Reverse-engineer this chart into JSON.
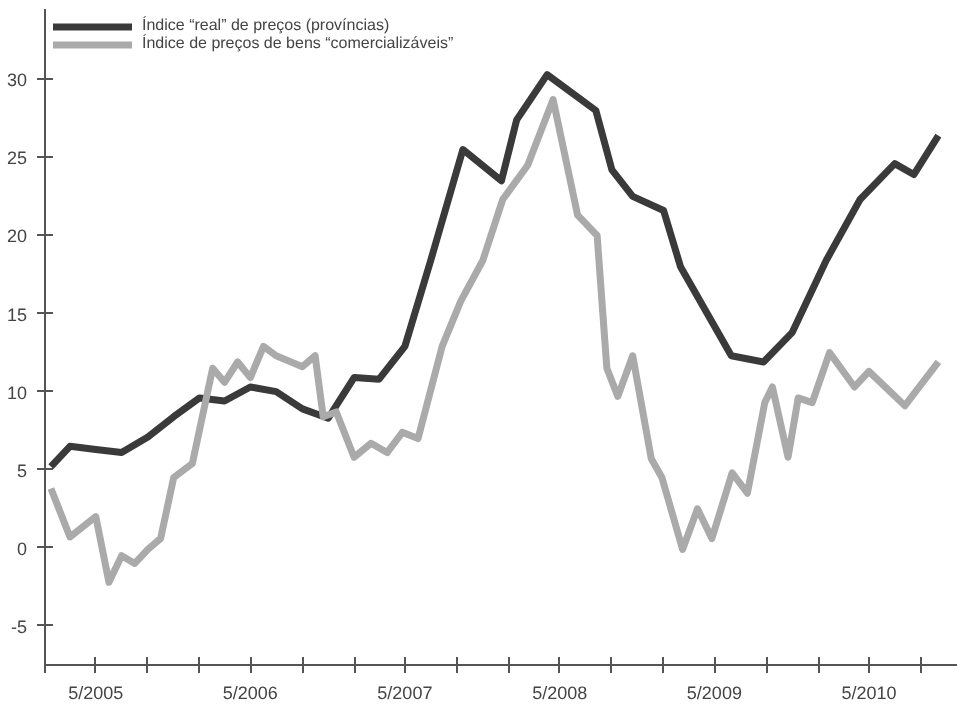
{
  "chart_data": {
    "type": "line",
    "xlim": [
      "2005-01",
      "2010-11-25"
    ],
    "ylim": [
      -7.5,
      34.5
    ],
    "xticks": [
      {
        "value": "2005-01",
        "label": null
      },
      {
        "value": "2005-05",
        "label": "5/2005"
      },
      {
        "value": "2005-09",
        "label": null
      },
      {
        "value": "2006-01",
        "label": null
      },
      {
        "value": "2006-05",
        "label": "5/2006"
      },
      {
        "value": "2006-09",
        "label": null
      },
      {
        "value": "2007-01",
        "label": null
      },
      {
        "value": "2007-05",
        "label": "5/2007"
      },
      {
        "value": "2007-09",
        "label": null
      },
      {
        "value": "2008-01",
        "label": null
      },
      {
        "value": "2008-05",
        "label": "5/2008"
      },
      {
        "value": "2008-09",
        "label": null
      },
      {
        "value": "2009-01",
        "label": null
      },
      {
        "value": "2009-05",
        "label": "5/2009"
      },
      {
        "value": "2009-09",
        "label": null
      },
      {
        "value": "2010-01",
        "label": null
      },
      {
        "value": "2010-05",
        "label": "5/2010"
      },
      {
        "value": "2010-09",
        "label": null
      }
    ],
    "yticks": [
      -5,
      0,
      5,
      10,
      15,
      20,
      25,
      30
    ],
    "grid": false,
    "legend": "top left",
    "line_style": "solid",
    "marker": "none",
    "series": [
      {
        "name": "Índice “real” de preços (províncias)",
        "color": "#3a3a3a",
        "x": [
          "2005-01-15",
          "2005-03",
          "2005-05",
          "2005-07",
          "2005-09",
          "2005-11",
          "2006-01",
          "2006-03",
          "2006-05",
          "2006-07",
          "2006-09",
          "2006-11",
          "2007-01",
          "2007-03",
          "2007-05",
          "2007-07",
          "2007-09-15",
          "2007-12-15",
          "2008-01-20",
          "2008-04",
          "2008-07-25",
          "2008-09",
          "2008-10-20",
          "2009-01",
          "2009-02-10",
          "2009-06-10",
          "2009-08-25",
          "2009-11",
          "2010-01-20",
          "2010-04-10",
          "2010-07",
          "2010-08-15",
          "2010-10-12"
        ],
        "values": [
          5.2,
          6.5,
          6.3,
          6.1,
          7.1,
          8.4,
          9.6,
          9.4,
          10.3,
          10.0,
          8.9,
          8.3,
          10.9,
          10.8,
          12.9,
          18.4,
          25.5,
          23.5,
          27.4,
          30.3,
          28,
          24.2,
          22.5,
          21.6,
          18,
          12.3,
          11.9,
          13.8,
          18.4,
          22.3,
          24.6,
          23.9,
          26.4
        ]
      },
      {
        "name": "Índice de preços de bens “comercializáveis”",
        "color": "#aaaaaa",
        "x": [
          "2005-01-15",
          "2005-03",
          "2005-05",
          "2005-06",
          "2005-07",
          "2005-08",
          "2005-09",
          "2005-10",
          "2005-11",
          "2005-12-15",
          "2006-02",
          "2006-03",
          "2006-04",
          "2006-05",
          "2006-06",
          "2006-07",
          "2006-09",
          "2006-10",
          "2006-10-20",
          "2006-11-20",
          "2007-01",
          "2007-02-10",
          "2007-03-20",
          "2007-04-25",
          "2007-06",
          "2007-07-28",
          "2007-09-10",
          "2007-11",
          "2007-12-18",
          "2008-02-15",
          "2008-04-15",
          "2008-06-12",
          "2008-07-28",
          "2008-08-20",
          "2008-09-15",
          "2008-10-20",
          "2008-12-03",
          "2008-12-28",
          "2009-02-15",
          "2009-03-22",
          "2009-04-25",
          "2009-06-12",
          "2009-07-18",
          "2009-08-28",
          "2009-09-15",
          "2009-10-22",
          "2009-11-15",
          "2009-12-18",
          "2010-01-28",
          "2010-03-28",
          "2010-05",
          "2010-07-25",
          "2010-10-12"
        ],
        "values": [
          3.8,
          0.7,
          2.0,
          -2.2,
          -0.5,
          -1.0,
          -0.1,
          0.6,
          4.5,
          5.4,
          11.5,
          10.6,
          11.9,
          10.9,
          12.9,
          12.3,
          11.6,
          12.3,
          8.4,
          8.7,
          5.8,
          6.7,
          6.1,
          7.4,
          7.0,
          12.9,
          15.8,
          18.4,
          22.3,
          24.5,
          28.7,
          21.3,
          20,
          11.5,
          9.7,
          12.3,
          5.7,
          4.5,
          -0.1,
          2.5,
          0.6,
          4.8,
          3.5,
          9.3,
          10.3,
          5.8,
          9.6,
          9.3,
          12.5,
          10.3,
          11.3,
          9.1,
          11.9
        ]
      }
    ]
  }
}
